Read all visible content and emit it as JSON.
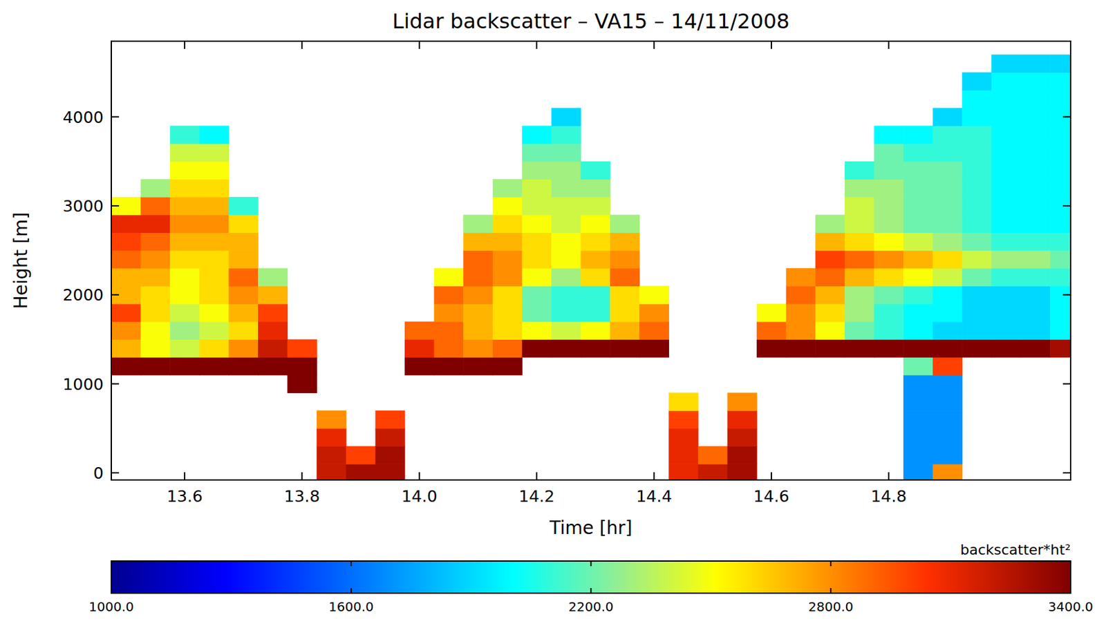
{
  "chart_data": {
    "type": "heatmap",
    "title": "Lidar backscatter – VA15 – 14/11/2008",
    "xlabel": "Time [hr]",
    "ylabel": "Height [m]",
    "xlim": [
      13.475,
      15.11
    ],
    "ylim": [
      -80,
      4850
    ],
    "xticks": [
      13.6,
      13.8,
      {
        "value": 14,
        "label": "14.0"
      },
      14.2,
      14.4,
      14.6,
      14.8
    ],
    "yticks": [
      0,
      1000,
      2000,
      3000,
      4000
    ],
    "x": [
      13.5,
      13.55,
      13.6,
      13.65,
      13.7,
      13.75,
      13.8,
      13.85,
      13.9,
      13.95,
      14.0,
      14.05,
      14.1,
      14.15,
      14.2,
      14.25,
      14.3,
      14.35,
      14.4,
      14.45,
      14.5,
      14.55,
      14.6,
      14.65,
      14.7,
      14.75,
      14.8,
      14.85,
      14.9,
      14.95,
      15.0,
      15.05,
      15.1
    ],
    "y": [
      0,
      200,
      400,
      600,
      800,
      1000,
      1200,
      1400,
      1600,
      1800,
      2000,
      2200,
      2400,
      2600,
      2800,
      3000,
      3200,
      3400,
      3600,
      3800,
      4000,
      4200,
      4400,
      4600
    ],
    "values": [
      [
        null,
        null,
        null,
        null,
        null,
        null,
        null,
        3200,
        3300,
        3300,
        null,
        null,
        null,
        null,
        null,
        null,
        null,
        null,
        null,
        3100,
        3200,
        3300,
        null,
        null,
        null,
        null,
        null,
        1700,
        2800,
        null,
        null,
        null,
        null
      ],
      [
        null,
        null,
        null,
        null,
        null,
        null,
        null,
        3200,
        3000,
        3300,
        null,
        null,
        null,
        null,
        null,
        null,
        null,
        null,
        null,
        3100,
        2900,
        3300,
        null,
        null,
        null,
        null,
        null,
        1700,
        1700,
        null,
        null,
        null,
        null
      ],
      [
        null,
        null,
        null,
        null,
        null,
        null,
        null,
        3100,
        null,
        3200,
        null,
        null,
        null,
        null,
        null,
        null,
        null,
        null,
        null,
        3100,
        null,
        3200,
        null,
        null,
        null,
        null,
        null,
        1700,
        1700,
        null,
        null,
        null,
        null
      ],
      [
        null,
        null,
        null,
        null,
        null,
        null,
        null,
        2800,
        null,
        3000,
        null,
        null,
        null,
        null,
        null,
        null,
        null,
        null,
        null,
        3000,
        null,
        3100,
        null,
        null,
        null,
        null,
        null,
        1700,
        1700,
        null,
        null,
        null,
        null
      ],
      [
        null,
        null,
        null,
        null,
        null,
        null,
        null,
        null,
        null,
        null,
        null,
        null,
        null,
        null,
        null,
        null,
        null,
        null,
        null,
        2600,
        null,
        2800,
        null,
        null,
        null,
        null,
        null,
        1700,
        1700,
        null,
        null,
        null,
        null
      ],
      [
        null,
        null,
        null,
        null,
        null,
        null,
        3400,
        null,
        null,
        null,
        null,
        null,
        null,
        null,
        null,
        null,
        null,
        null,
        null,
        null,
        null,
        null,
        null,
        null,
        null,
        null,
        null,
        1700,
        1700,
        null,
        null,
        null,
        null
      ],
      [
        3400,
        3400,
        3400,
        3400,
        3400,
        3400,
        3400,
        null,
        null,
        null,
        3400,
        3400,
        3400,
        3400,
        null,
        null,
        null,
        null,
        null,
        null,
        null,
        null,
        null,
        null,
        null,
        null,
        null,
        2200,
        3000,
        null,
        null,
        null,
        null
      ],
      [
        2700,
        2500,
        2400,
        2600,
        2800,
        3200,
        3000,
        null,
        null,
        null,
        3100,
        2900,
        2800,
        2900,
        3400,
        3400,
        3400,
        3400,
        3400,
        null,
        null,
        null,
        3400,
        3400,
        3400,
        3400,
        3400,
        3400,
        3400,
        3400,
        3400,
        3400,
        3300
      ],
      [
        2800,
        2500,
        2300,
        2400,
        2600,
        3100,
        null,
        null,
        null,
        null,
        2900,
        2900,
        2700,
        2600,
        2500,
        2400,
        2500,
        2700,
        2900,
        null,
        null,
        null,
        2900,
        2800,
        2500,
        2200,
        2100,
        2000,
        1900,
        1900,
        1900,
        1900,
        2000
      ],
      [
        3000,
        2600,
        2400,
        2500,
        2700,
        3000,
        null,
        null,
        null,
        null,
        null,
        2800,
        2700,
        2600,
        2200,
        2100,
        2100,
        2600,
        2800,
        null,
        null,
        null,
        2500,
        2800,
        2600,
        2300,
        2100,
        2000,
        2000,
        1900,
        1900,
        1900,
        2000
      ],
      [
        2700,
        2600,
        2500,
        2600,
        2800,
        2700,
        null,
        null,
        null,
        null,
        null,
        2900,
        2800,
        2600,
        2200,
        2100,
        2100,
        2600,
        2500,
        null,
        null,
        null,
        null,
        2900,
        2700,
        2300,
        2200,
        2100,
        2000,
        1900,
        1900,
        1900,
        2000
      ],
      [
        2700,
        2700,
        2500,
        2600,
        2900,
        2300,
        null,
        null,
        null,
        null,
        null,
        2500,
        2900,
        2800,
        2500,
        2300,
        2600,
        2900,
        null,
        null,
        null,
        null,
        null,
        2800,
        2900,
        2700,
        2600,
        2500,
        2400,
        2200,
        2100,
        2100,
        2100
      ],
      [
        2900,
        2800,
        2600,
        2600,
        2700,
        null,
        null,
        null,
        null,
        null,
        null,
        null,
        2900,
        2800,
        2600,
        2500,
        2700,
        2800,
        null,
        null,
        null,
        null,
        null,
        null,
        3000,
        2900,
        2800,
        2700,
        2600,
        2400,
        2300,
        2300,
        2200
      ],
      [
        3000,
        2900,
        2700,
        2700,
        2700,
        null,
        null,
        null,
        null,
        null,
        null,
        null,
        2700,
        2700,
        2600,
        2500,
        2600,
        2700,
        null,
        null,
        null,
        null,
        null,
        null,
        2700,
        2600,
        2500,
        2400,
        2300,
        2200,
        2100,
        2100,
        2100
      ],
      [
        3100,
        3100,
        2800,
        2800,
        2600,
        null,
        null,
        null,
        null,
        null,
        null,
        null,
        2300,
        2600,
        2500,
        2400,
        2500,
        2300,
        null,
        null,
        null,
        null,
        null,
        null,
        2300,
        2400,
        2300,
        2200,
        2200,
        2100,
        2000,
        2000,
        2000
      ],
      [
        2500,
        2900,
        2700,
        2700,
        2100,
        null,
        null,
        null,
        null,
        null,
        null,
        null,
        null,
        2500,
        2400,
        2400,
        2400,
        null,
        null,
        null,
        null,
        null,
        null,
        null,
        null,
        2400,
        2300,
        2200,
        2200,
        2100,
        2000,
        2000,
        2000
      ],
      [
        null,
        2300,
        2600,
        2600,
        null,
        null,
        null,
        null,
        null,
        null,
        null,
        null,
        null,
        2300,
        2400,
        2300,
        2300,
        null,
        null,
        null,
        null,
        null,
        null,
        null,
        null,
        2300,
        2300,
        2200,
        2200,
        2100,
        2000,
        2000,
        2000
      ],
      [
        null,
        null,
        2500,
        2500,
        null,
        null,
        null,
        null,
        null,
        null,
        null,
        null,
        null,
        null,
        2300,
        2300,
        2100,
        null,
        null,
        null,
        null,
        null,
        null,
        null,
        null,
        2100,
        2200,
        2200,
        2200,
        2100,
        2000,
        2000,
        2000
      ],
      [
        null,
        null,
        2400,
        2400,
        null,
        null,
        null,
        null,
        null,
        null,
        null,
        null,
        null,
        null,
        2200,
        2200,
        null,
        null,
        null,
        null,
        null,
        null,
        null,
        null,
        null,
        null,
        2200,
        2100,
        2100,
        2100,
        2000,
        2000,
        2000
      ],
      [
        null,
        null,
        2100,
        2000,
        null,
        null,
        null,
        null,
        null,
        null,
        null,
        null,
        null,
        null,
        2000,
        2100,
        null,
        null,
        null,
        null,
        null,
        null,
        null,
        null,
        null,
        null,
        2000,
        2000,
        2100,
        2100,
        2000,
        2000,
        2000
      ],
      [
        null,
        null,
        null,
        null,
        null,
        null,
        null,
        null,
        null,
        null,
        null,
        null,
        null,
        null,
        null,
        1900,
        null,
        null,
        null,
        null,
        null,
        null,
        null,
        null,
        null,
        null,
        null,
        null,
        1900,
        2000,
        2000,
        2000,
        2000
      ],
      [
        null,
        null,
        null,
        null,
        null,
        null,
        null,
        null,
        null,
        null,
        null,
        null,
        null,
        null,
        null,
        null,
        null,
        null,
        null,
        null,
        null,
        null,
        null,
        null,
        null,
        null,
        null,
        null,
        null,
        2000,
        2000,
        2000,
        2000
      ],
      [
        null,
        null,
        null,
        null,
        null,
        null,
        null,
        null,
        null,
        null,
        null,
        null,
        null,
        null,
        null,
        null,
        null,
        null,
        null,
        null,
        null,
        null,
        null,
        null,
        null,
        null,
        null,
        null,
        null,
        1900,
        2000,
        2000,
        2000
      ],
      [
        null,
        null,
        null,
        null,
        null,
        null,
        null,
        null,
        null,
        null,
        null,
        null,
        null,
        null,
        null,
        null,
        null,
        null,
        null,
        null,
        null,
        null,
        null,
        null,
        null,
        null,
        null,
        null,
        null,
        null,
        1900,
        1900,
        1900
      ]
    ],
    "colorbar": {
      "label": "backscatter*ht²",
      "range": [
        1000,
        3400
      ],
      "ticks": [
        {
          "value": 1000,
          "label": "1000.0"
        },
        {
          "value": 1600,
          "label": "1600.0"
        },
        {
          "value": 2200,
          "label": "2200.0"
        },
        {
          "value": 2800,
          "label": "2800.0"
        },
        {
          "value": 3400,
          "label": "3400.0"
        }
      ]
    }
  }
}
